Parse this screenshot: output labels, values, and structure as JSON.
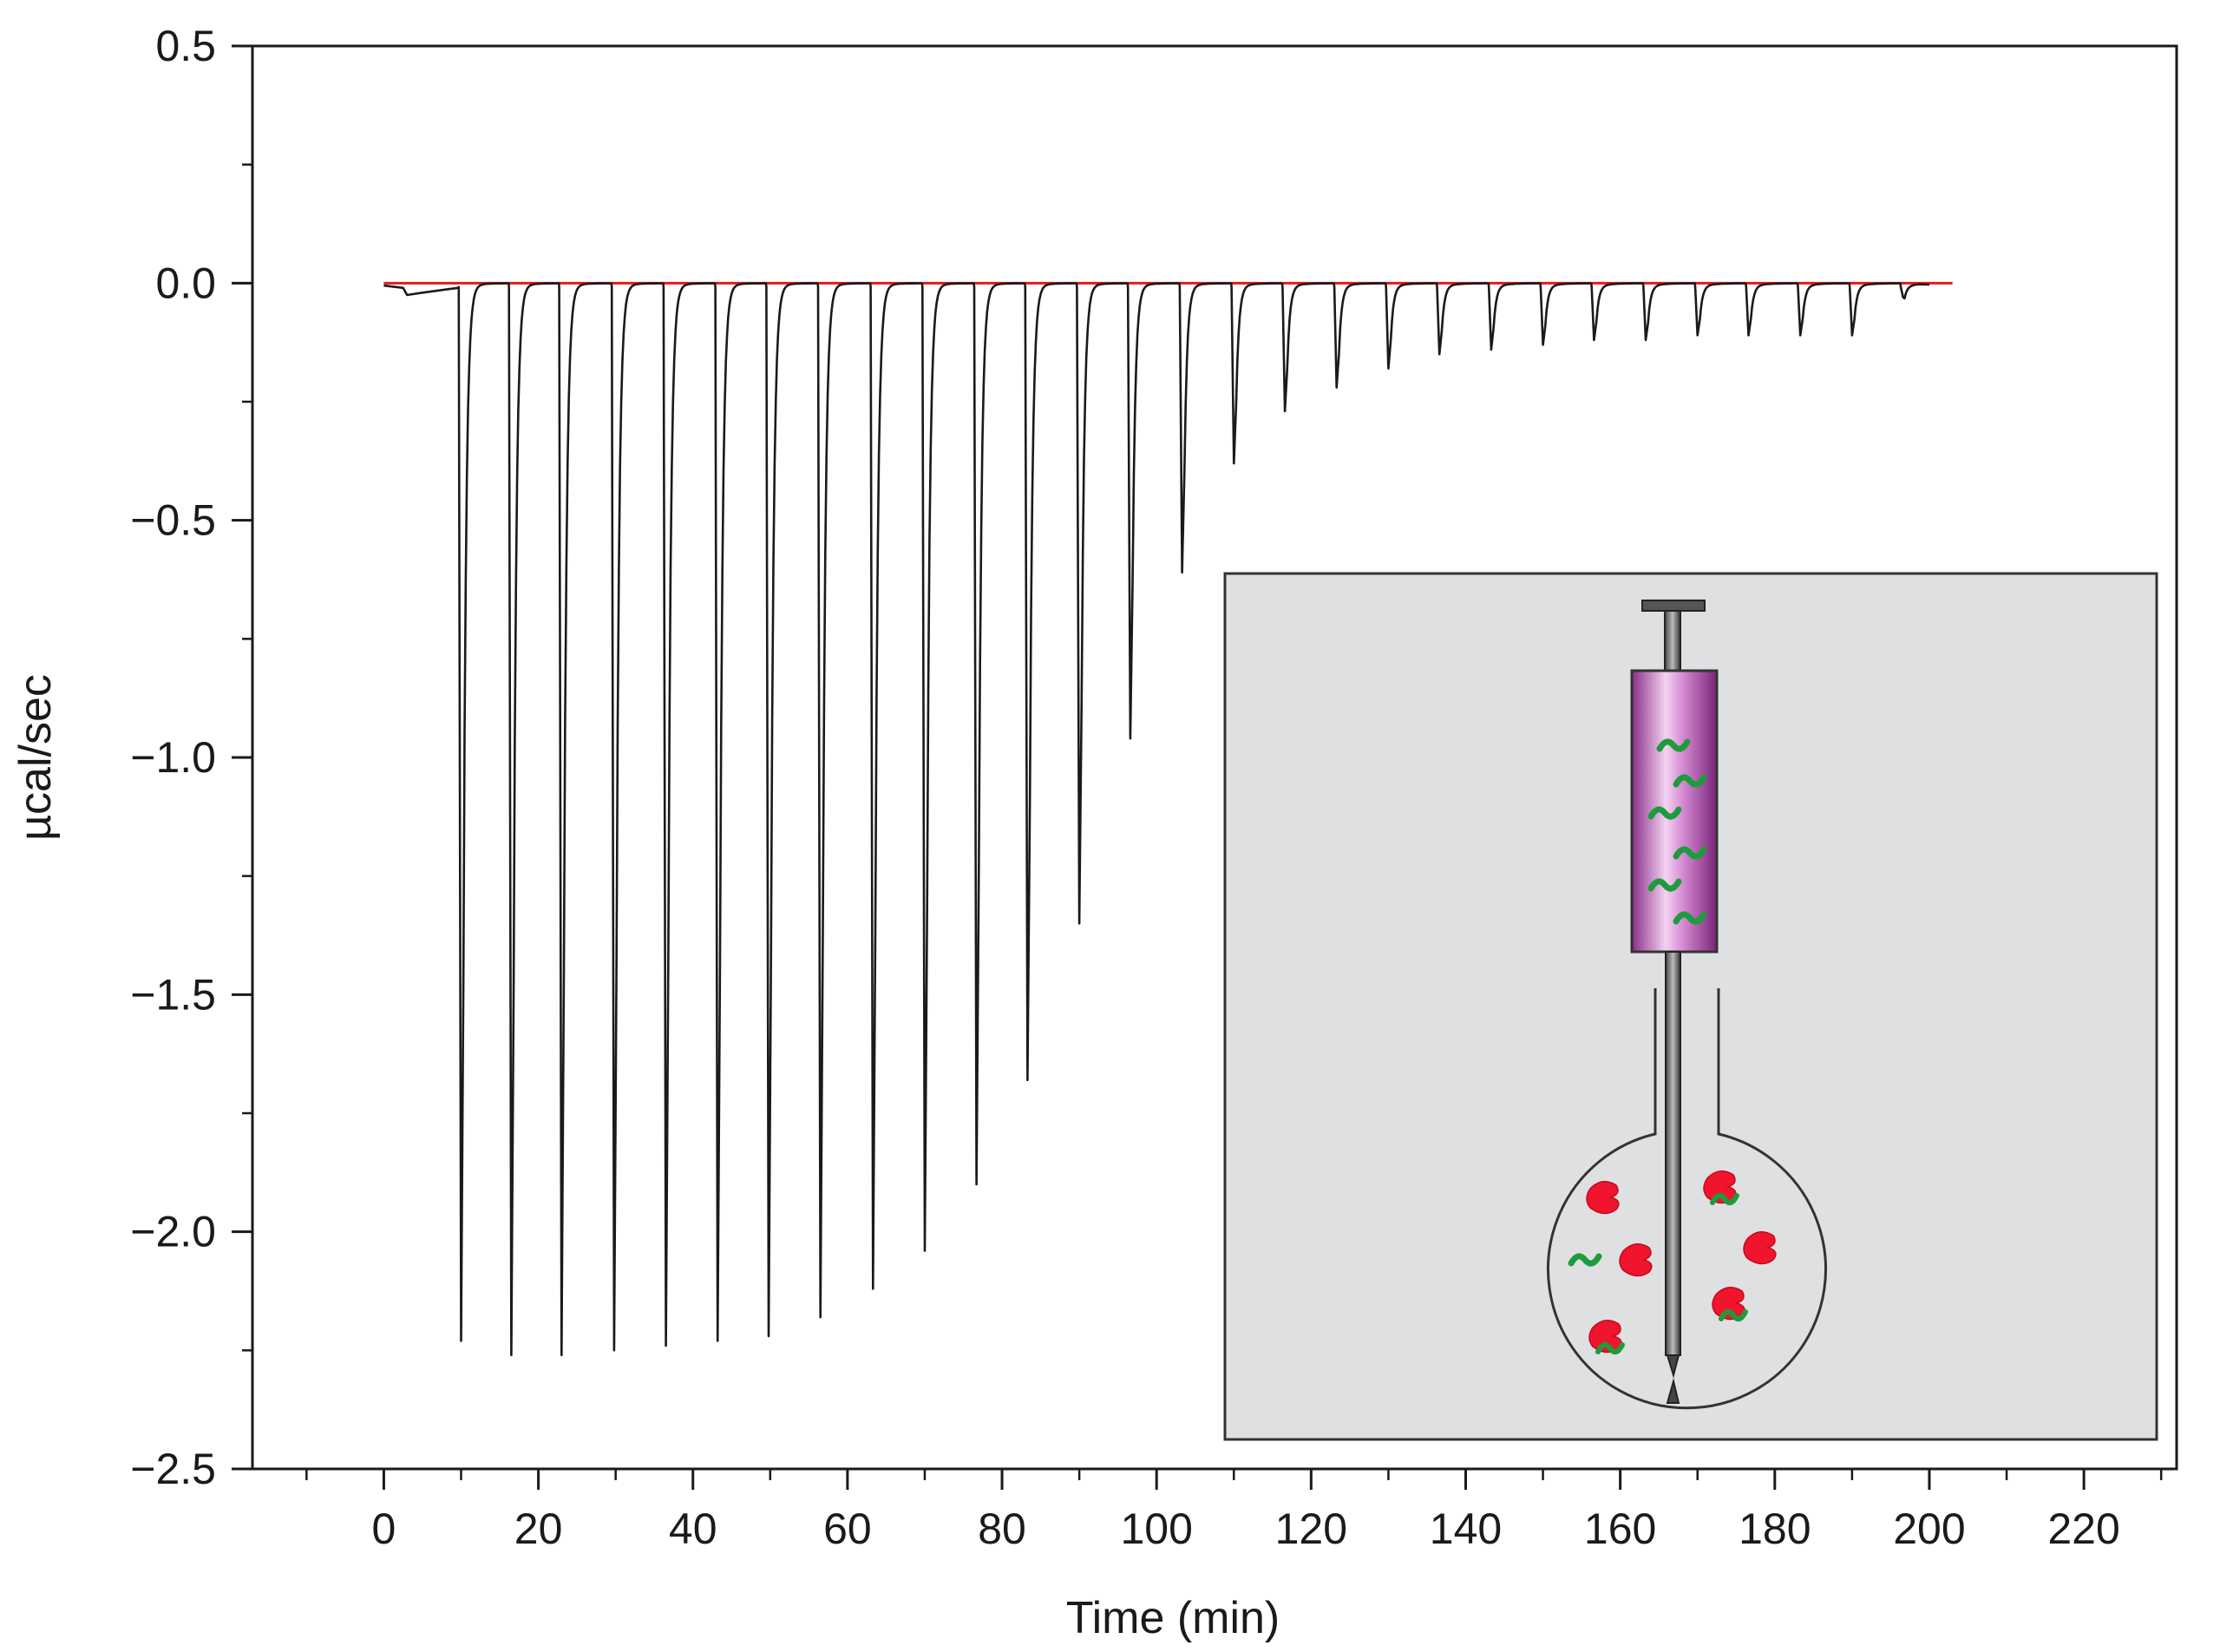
{
  "chart_data": {
    "type": "line",
    "title": "",
    "xlabel": "Time (min)",
    "ylabel": "µcal/sec",
    "xlim": [
      -17,
      232
    ],
    "ylim": [
      -2.5,
      0.5
    ],
    "x_ticks": [
      0,
      20,
      40,
      60,
      80,
      100,
      120,
      140,
      160,
      180,
      200,
      220
    ],
    "x_tick_labels": [
      "0",
      "20",
      "40",
      "60",
      "80",
      "100",
      "120",
      "140",
      "160",
      "180",
      "200",
      "220"
    ],
    "y_ticks": [
      0.5,
      0.0,
      -0.5,
      -1.0,
      -1.5,
      -2.0,
      -2.5
    ],
    "y_tick_labels": [
      "0.5",
      "0.0",
      "−0.5",
      "−1.0",
      "−1.5",
      "−2.0",
      "−2.5"
    ],
    "grid": false,
    "baseline": {
      "y": 0.0,
      "x_start": 0,
      "x_end": 203,
      "color": "#e8181e"
    },
    "series": [
      {
        "color": "#1a1a1a",
        "injection_peaks": [
          {
            "time": 10.0,
            "min": -2.23
          },
          {
            "time": 16.5,
            "min": -2.26
          },
          {
            "time": 23.0,
            "min": -2.26
          },
          {
            "time": 29.8,
            "min": -2.25
          },
          {
            "time": 36.5,
            "min": -2.24
          },
          {
            "time": 43.2,
            "min": -2.23
          },
          {
            "time": 49.8,
            "min": -2.22
          },
          {
            "time": 56.5,
            "min": -2.18
          },
          {
            "time": 63.3,
            "min": -2.12
          },
          {
            "time": 70.0,
            "min": -2.04
          },
          {
            "time": 76.7,
            "min": -1.9
          },
          {
            "time": 83.3,
            "min": -1.68
          },
          {
            "time": 90.0,
            "min": -1.35
          },
          {
            "time": 96.6,
            "min": -0.96
          },
          {
            "time": 103.3,
            "min": -0.61
          },
          {
            "time": 110.0,
            "min": -0.38
          },
          {
            "time": 116.6,
            "min": -0.27
          },
          {
            "time": 123.3,
            "min": -0.22
          },
          {
            "time": 130.0,
            "min": -0.18
          },
          {
            "time": 136.6,
            "min": -0.15
          },
          {
            "time": 143.3,
            "min": -0.14
          },
          {
            "time": 150.0,
            "min": -0.13
          },
          {
            "time": 156.6,
            "min": -0.12
          },
          {
            "time": 163.3,
            "min": -0.12
          },
          {
            "time": 170.0,
            "min": -0.11
          },
          {
            "time": 176.6,
            "min": -0.11
          },
          {
            "time": 183.3,
            "min": -0.11
          },
          {
            "time": 190.0,
            "min": -0.11
          },
          {
            "time": 196.6,
            "min": -0.03
          }
        ]
      }
    ]
  },
  "inset": {
    "background": "#dfe0e2",
    "syringe_color": "#b54fb3",
    "ligand_color": "#1c9c3c",
    "protein_color": "#f0142c"
  }
}
